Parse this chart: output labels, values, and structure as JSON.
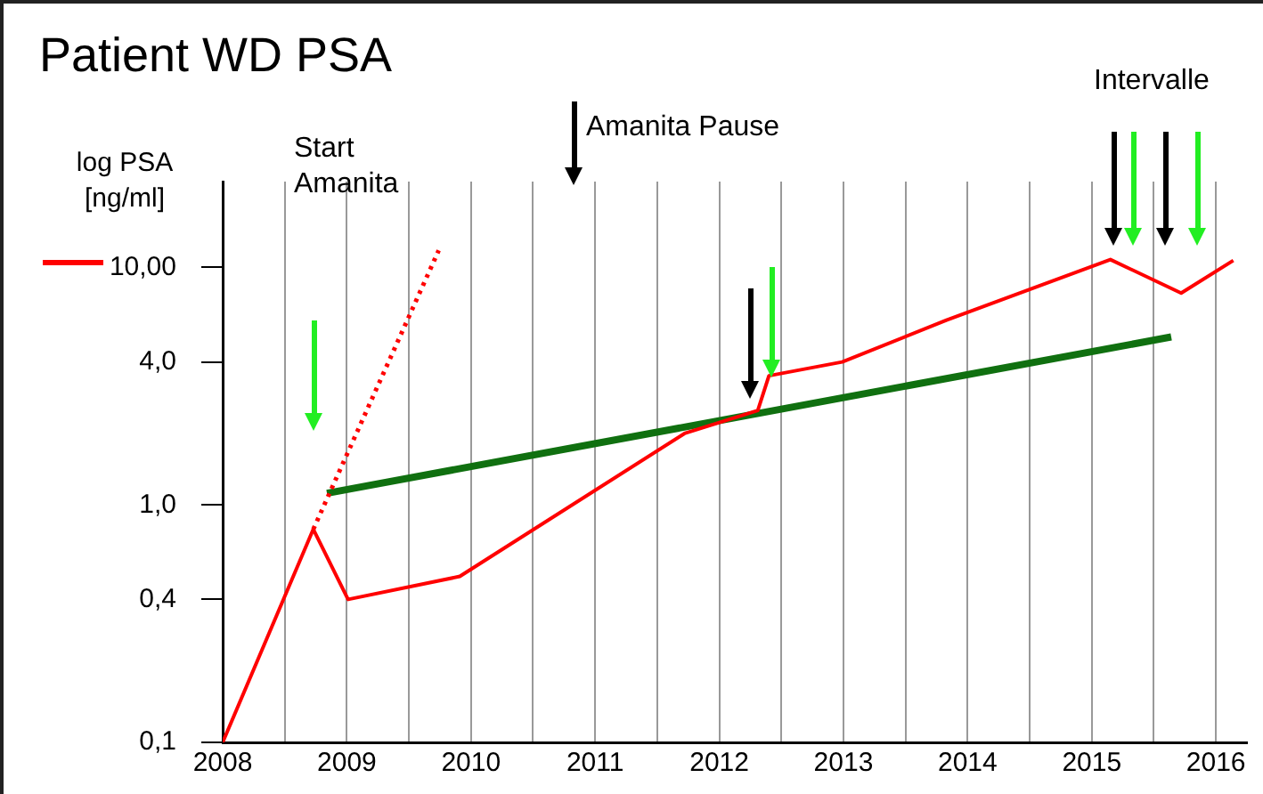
{
  "chart_data": {
    "type": "line",
    "title": "Patient WD  PSA",
    "ylabel": "log PSA [ng/ml]",
    "annotations": [
      "Start Amanita",
      "Amanita Pause",
      "Intervalle"
    ],
    "series": [
      {
        "color": "#ff0000",
        "x": [
          2008,
          2008.73,
          2009.01,
          2009.91,
          2011.72,
          2012.31,
          2012.4,
          2012.99,
          2013.83,
          2015.15,
          2015.72,
          2016.14
        ],
        "values": [
          0.1,
          0.79,
          0.4,
          0.5,
          2.0,
          2.5,
          3.5,
          4.0,
          6.0,
          10.8,
          7.8,
          10.7
        ]
      },
      {
        "color": "#ff0000",
        "line_style": "dotted",
        "x": [
          2008.73,
          2009.74
        ],
        "values": [
          0.79,
          11.8
        ]
      },
      {
        "color": "#107010",
        "x": [
          2008.84,
          2015.64
        ],
        "values": [
          1.12,
          5.1
        ]
      }
    ],
    "log": true,
    "grid": "x",
    "marker": "none",
    "xlim": [
      2008,
      2016.25
    ],
    "xticks": [
      2008,
      {
        "value": 2008.5,
        "label": null
      },
      2009,
      {
        "value": 2009.5,
        "label": null
      },
      2010,
      {
        "value": 2010.5,
        "label": null
      },
      2011,
      {
        "value": 2011.5,
        "label": null
      },
      2012,
      {
        "value": 2012.5,
        "label": null
      },
      2013,
      {
        "value": 2013.5,
        "label": null
      },
      2014,
      {
        "value": 2014.5,
        "label": null
      },
      2015,
      {
        "value": 2015.5,
        "label": null
      },
      2016
    ],
    "ylim": [
      0.1,
      23
    ],
    "yticks": [
      {
        "value": 0.1,
        "label": "0,1"
      },
      {
        "value": 0.4,
        "label": "0,4"
      },
      {
        "value": 1,
        "label": "1,0"
      },
      {
        "value": 4,
        "label": "4,0"
      },
      {
        "value": 10,
        "label": "10,00"
      }
    ]
  }
}
